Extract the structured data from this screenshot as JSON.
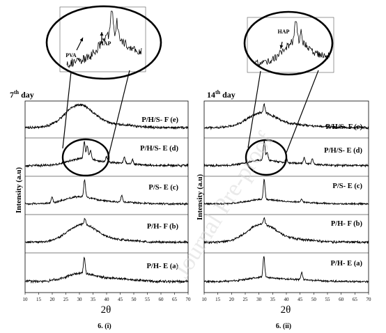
{
  "watermark": "Journal Pre-proof",
  "panels": [
    {
      "day_label": "7th day",
      "day_num": "7",
      "day_sup": "th",
      "day_word": "day",
      "panel_label": "6. (i)",
      "xlabel": "2θ",
      "ylabel": "Intensity  (a.u)",
      "inset": {
        "labels": [
          "PVA",
          "HAP"
        ]
      }
    },
    {
      "day_label": "14th day",
      "day_num": "14",
      "day_sup": "th",
      "day_word": "day",
      "panel_label": "6. (ii)",
      "xlabel": "2θ",
      "ylabel": "Intensity  (a.u)",
      "inset": {
        "labels": [
          "HAP"
        ]
      }
    }
  ],
  "chart_data": [
    {
      "type": "line",
      "title": "7th day",
      "xlabel": "2θ",
      "ylabel": "Intensity  (a.u)",
      "xlim": [
        10,
        70
      ],
      "xticks": [
        10,
        15,
        20,
        25,
        30,
        35,
        40,
        45,
        50,
        55,
        60,
        65,
        70
      ],
      "stacked": true,
      "series": [
        {
          "name": "P/H/S- F (e)",
          "hump": [
            30,
            1.0
          ],
          "peaks": []
        },
        {
          "name": "P/H/S- E (d)",
          "hump": [
            31,
            0.35
          ],
          "peaks": [
            [
              31.8,
              0.9
            ],
            [
              32.9,
              0.7
            ],
            [
              34.1,
              0.45
            ],
            [
              40,
              0.3
            ],
            [
              46.5,
              0.35
            ],
            [
              49.5,
              0.25
            ]
          ]
        },
        {
          "name": "P/S- E (c)",
          "hump": [
            30,
            0.45
          ],
          "peaks": [
            [
              19.9,
              0.35
            ],
            [
              31.9,
              1.1
            ],
            [
              45.6,
              0.4
            ]
          ]
        },
        {
          "name": "P/H- F (b)",
          "hump": [
            31,
            1.0
          ],
          "peaks": [
            [
              32,
              0.35
            ]
          ]
        },
        {
          "name": "P/H- E (a)",
          "hump": [
            30.5,
            0.35
          ],
          "peaks": [
            [
              31.8,
              0.75
            ]
          ]
        }
      ]
    },
    {
      "type": "line",
      "title": "14th day",
      "xlabel": "2θ",
      "ylabel": "Intensity  (a.u)",
      "xlim": [
        10,
        70
      ],
      "xticks": [
        10,
        15,
        20,
        25,
        30,
        35,
        40,
        45,
        50,
        55,
        60,
        65,
        70
      ],
      "stacked": true,
      "series": [
        {
          "name": "P/H/S- F (e)",
          "hump": [
            31,
            0.7
          ],
          "peaks": [
            [
              31.9,
              0.4
            ]
          ]
        },
        {
          "name": "P/H/S- E (d)",
          "hump": [
            31,
            0.3
          ],
          "peaks": [
            [
              31.9,
              1.1
            ],
            [
              33,
              0.5
            ],
            [
              40,
              0.3
            ],
            [
              46.5,
              0.35
            ],
            [
              49.5,
              0.3
            ]
          ]
        },
        {
          "name": "P/S- E (c)",
          "hump": [
            31,
            0.3
          ],
          "peaks": [
            [
              31.9,
              1.4
            ],
            [
              45.6,
              0.2
            ]
          ]
        },
        {
          "name": "P/H- F (b)",
          "hump": [
            31,
            0.9
          ],
          "peaks": [
            [
              31.9,
              0.3
            ]
          ]
        },
        {
          "name": "P/H- E (a)",
          "hump": [
            31,
            0.25
          ],
          "peaks": [
            [
              31.8,
              1.3
            ],
            [
              45.6,
              0.45
            ]
          ]
        }
      ]
    }
  ]
}
